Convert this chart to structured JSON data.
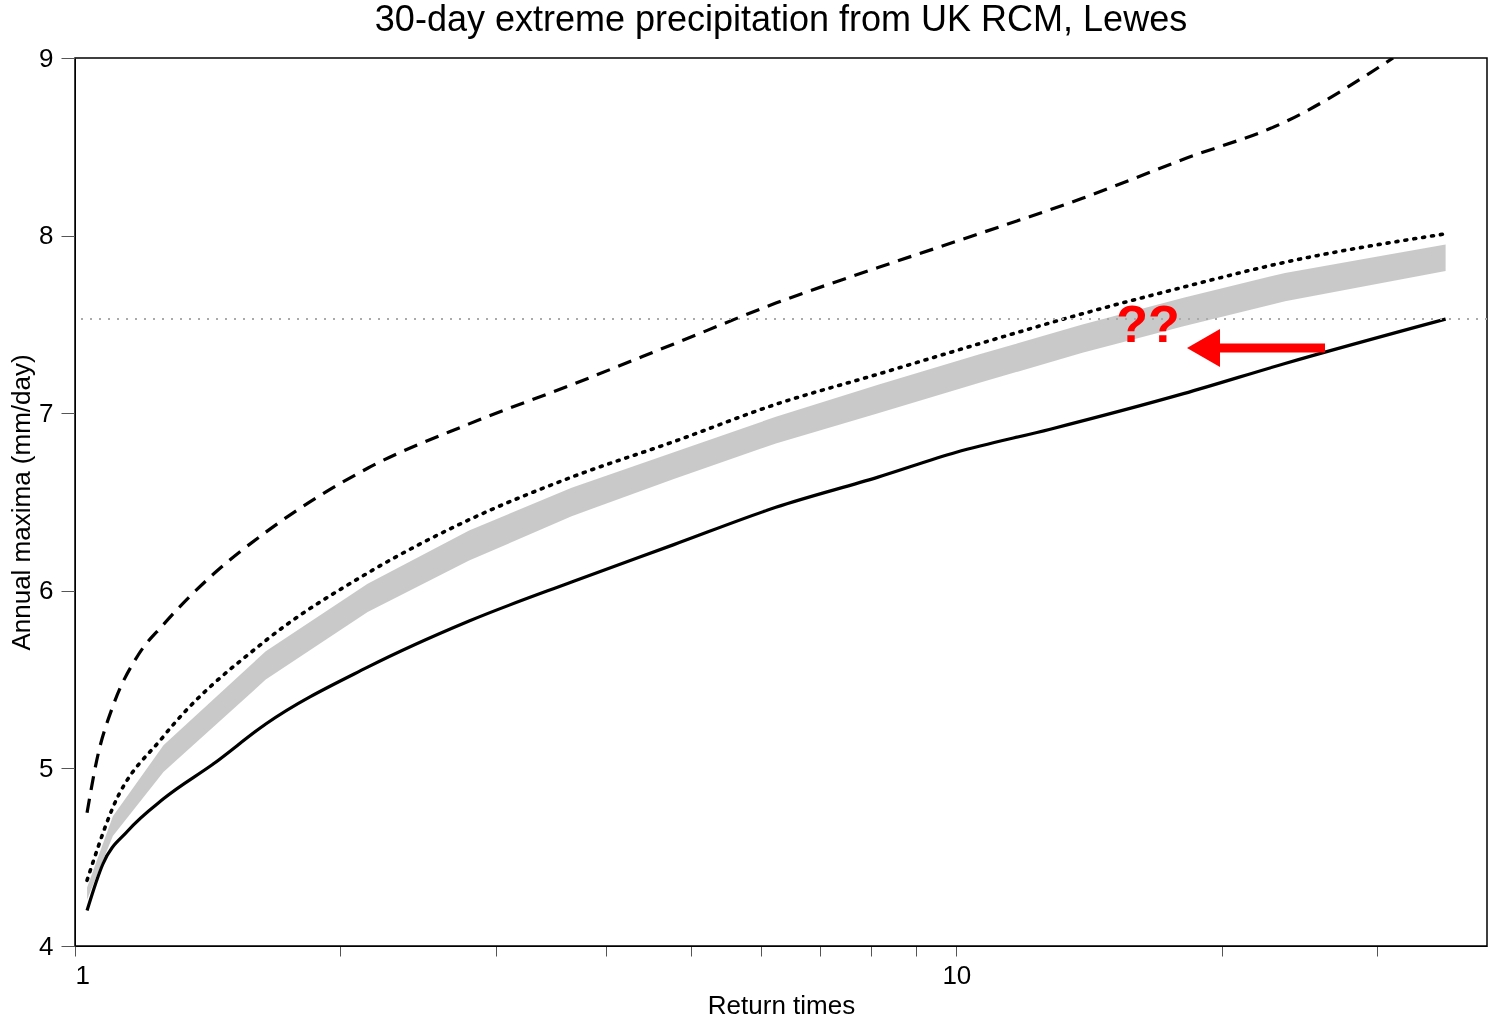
{
  "chart_data": {
    "type": "line",
    "title": "30-day extreme precipitation from UK RCM, Lewes",
    "xlabel": "Return times",
    "ylabel": "Annual maxima (mm/day)",
    "log": "x",
    "grid": false,
    "legend": false,
    "xlim": [
      1,
      40
    ],
    "xticks": [
      1,
      {
        "value": 2,
        "label": null
      },
      {
        "value": 3,
        "label": null
      },
      {
        "value": 4,
        "label": null
      },
      {
        "value": 5,
        "label": null
      },
      {
        "value": 6,
        "label": null
      },
      {
        "value": 7,
        "label": null
      },
      {
        "value": 8,
        "label": null
      },
      {
        "value": 9,
        "label": null
      },
      10,
      {
        "value": 20,
        "label": null
      },
      {
        "value": 30,
        "label": null
      }
    ],
    "ylim": [
      4,
      9
    ],
    "yticks": [
      4,
      5,
      6,
      7,
      8,
      9
    ],
    "series": [
      {
        "color": "#000000",
        "line_style": "solid",
        "x": [
          1.032,
          1.075,
          1.149,
          1.261,
          1.44,
          1.646,
          2.148,
          2.8,
          3.66,
          4.78,
          6.24,
          8.15,
          10,
          12.78,
          18.1,
          23.6,
          35.9
        ],
        "values": [
          4.2,
          4.46,
          4.65,
          4.83,
          5.03,
          5.25,
          5.57,
          5.83,
          6.05,
          6.26,
          6.47,
          6.64,
          6.78,
          6.91,
          7.11,
          7.28,
          7.53
        ]
      },
      {
        "color": "#000000",
        "line_style": "dashed",
        "x": [
          1.032,
          1.06,
          1.104,
          1.18,
          1.26,
          1.44,
          1.646,
          2.148,
          2.8,
          3.66,
          4.78,
          6.24,
          8.15,
          10.6,
          13.9,
          18.1,
          23.6,
          31.3
        ],
        "values": [
          4.75,
          5.06,
          5.35,
          5.64,
          5.81,
          6.1,
          6.33,
          6.69,
          6.94,
          7.16,
          7.39,
          7.62,
          7.82,
          8.01,
          8.21,
          8.43,
          8.64,
          9.0
        ]
      },
      {
        "color": "#000000",
        "line_style": "dotted",
        "x": [
          1.032,
          1.104,
          1.26,
          1.646,
          2.148,
          2.8,
          3.66,
          4.78,
          6.24,
          8.15,
          10.6,
          13.9,
          18.1,
          23.6,
          35.9
        ],
        "values": [
          4.37,
          4.78,
          5.18,
          5.72,
          6.1,
          6.4,
          6.64,
          6.84,
          7.05,
          7.22,
          7.39,
          7.56,
          7.71,
          7.85,
          8.01
        ],
        "lower": [
          4.26,
          4.62,
          4.98,
          5.5,
          5.88,
          6.17,
          6.42,
          6.63,
          6.83,
          7.0,
          7.17,
          7.34,
          7.49,
          7.63,
          7.8
        ],
        "upper": [
          4.33,
          4.73,
          5.13,
          5.66,
          6.04,
          6.34,
          6.58,
          6.78,
          6.98,
          7.16,
          7.33,
          7.5,
          7.65,
          7.79,
          7.95
        ]
      }
    ],
    "ref_lines": [
      {
        "axis": "y",
        "value": 7.53,
        "color": "#aaaaaa",
        "line_style": "dotted"
      }
    ],
    "annotations": [
      "??"
    ]
  }
}
